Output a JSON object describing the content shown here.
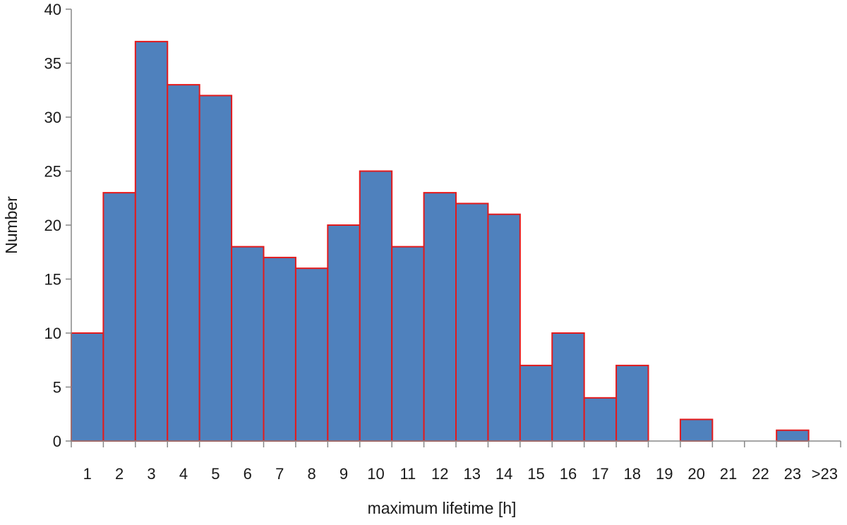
{
  "chart_data": {
    "type": "bar",
    "title": "",
    "xlabel": "maximum lifetime [h]",
    "ylabel": "Number",
    "categories": [
      "1",
      "2",
      "3",
      "4",
      "5",
      "6",
      "7",
      "8",
      "9",
      "10",
      "11",
      "12",
      "13",
      "14",
      "15",
      "16",
      "17",
      "18",
      "19",
      "20",
      "21",
      "22",
      "23",
      ">23"
    ],
    "values": [
      10,
      23,
      37,
      33,
      32,
      18,
      17,
      16,
      20,
      25,
      18,
      23,
      22,
      21,
      7,
      10,
      4,
      7,
      0,
      2,
      0,
      0,
      1,
      0
    ],
    "ylim": [
      0,
      40
    ],
    "yticks": [
      0,
      5,
      10,
      15,
      20,
      25,
      30,
      35,
      40
    ],
    "grid": false,
    "legend": "none",
    "colors": {
      "bar_fill": "#4f81bd",
      "bar_edge": "#e31a1c",
      "axis": "#888888"
    }
  }
}
